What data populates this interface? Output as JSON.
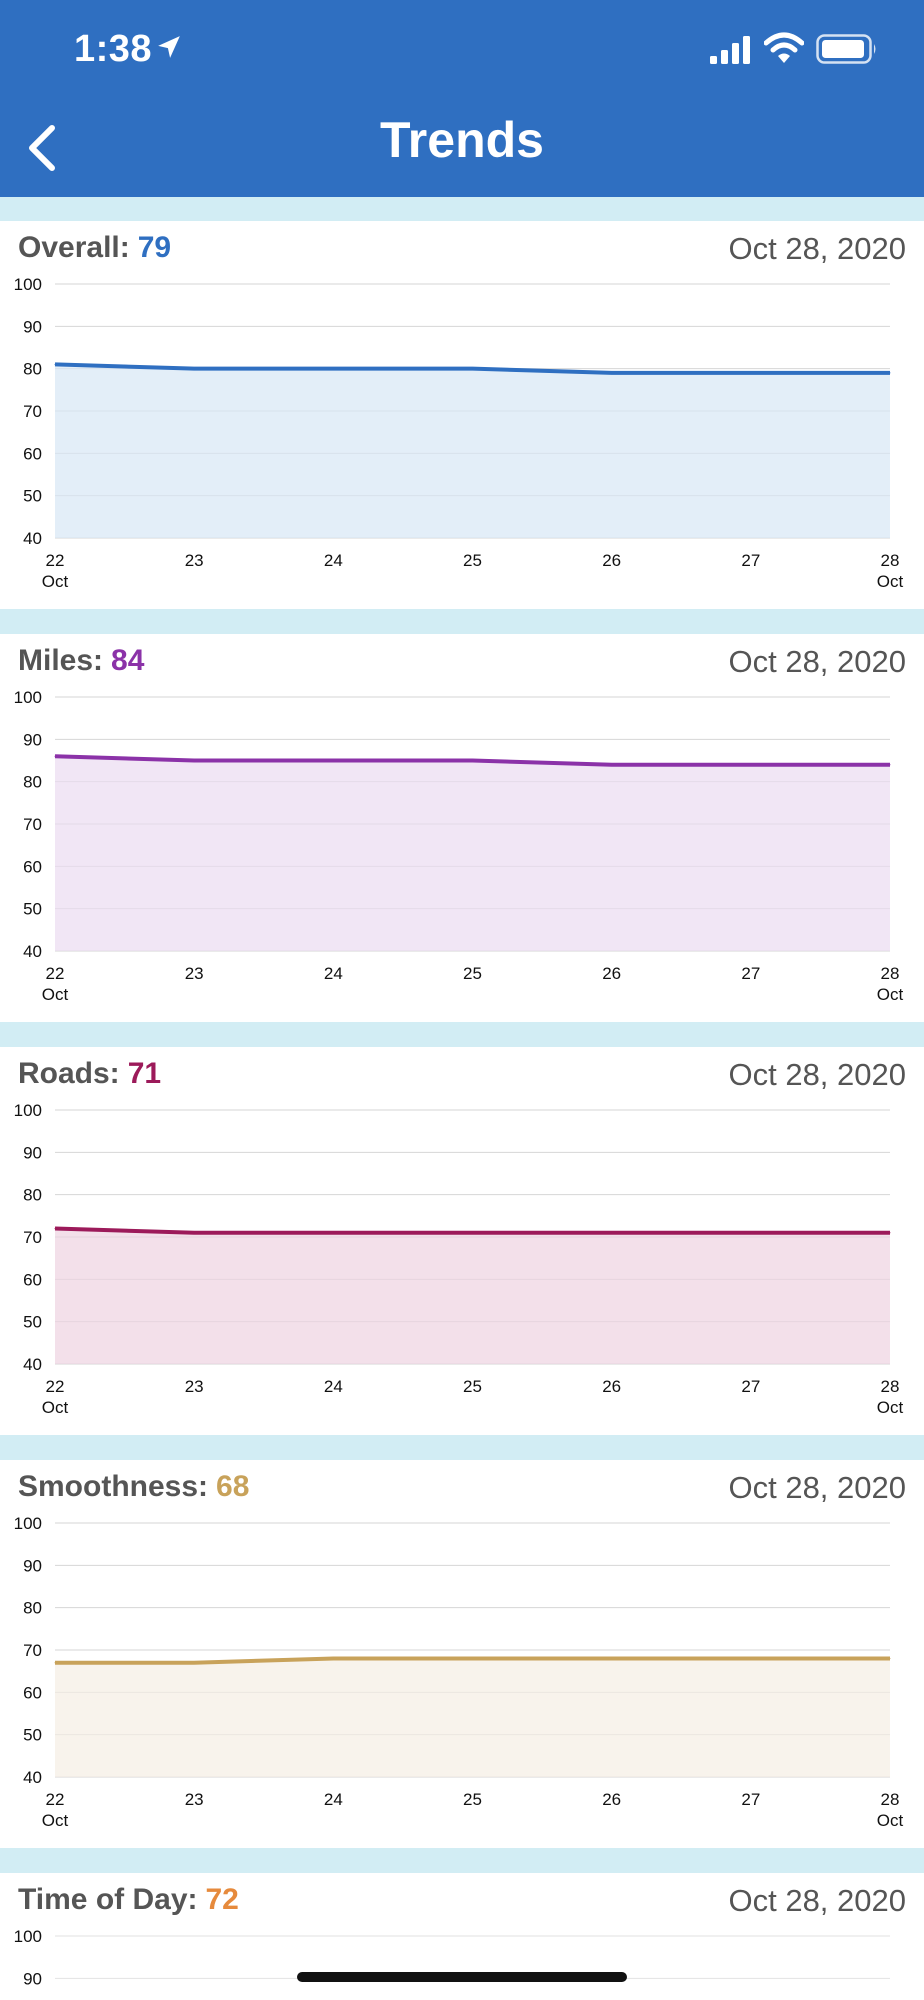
{
  "status_bar": {
    "time": "1:38"
  },
  "header": {
    "title": "Trends",
    "back_icon": "chevron-left-icon"
  },
  "cards": [
    {
      "label": "Overall:",
      "value": "79",
      "color": "#2f6fc1",
      "fill": "#e3eef8",
      "date": "Oct 28, 2020"
    },
    {
      "label": "Miles:",
      "value": "84",
      "color": "#8b32a8",
      "fill": "#f1e6f5",
      "date": "Oct 28, 2020"
    },
    {
      "label": "Roads:",
      "value": "71",
      "color": "#9c1a5a",
      "fill": "#f3e0ea",
      "date": "Oct 28, 2020"
    },
    {
      "label": "Smoothness:",
      "value": "68",
      "color": "#c8a25a",
      "fill": "#f8f3ec",
      "date": "Oct 28, 2020"
    },
    {
      "label": "Time of Day:",
      "value": "72",
      "color": "#e68a3c",
      "fill": "#fbeee3",
      "date": "Oct 28, 2020"
    }
  ],
  "chart_data": [
    {
      "type": "area",
      "x": [
        "22 Oct",
        "23",
        "24",
        "25",
        "26",
        "27",
        "28 Oct"
      ],
      "series": [
        {
          "values": [
            81,
            80,
            80,
            80,
            79,
            79,
            79
          ]
        }
      ],
      "ylim": [
        40,
        100
      ],
      "yticks": [
        100,
        90,
        80,
        70,
        60,
        50,
        40
      ]
    },
    {
      "type": "area",
      "x": [
        "22 Oct",
        "23",
        "24",
        "25",
        "26",
        "27",
        "28 Oct"
      ],
      "series": [
        {
          "values": [
            86,
            85,
            85,
            85,
            84,
            84,
            84
          ]
        }
      ],
      "ylim": [
        40,
        100
      ],
      "yticks": [
        100,
        90,
        80,
        70,
        60,
        50,
        40
      ]
    },
    {
      "type": "area",
      "x": [
        "22 Oct",
        "23",
        "24",
        "25",
        "26",
        "27",
        "28 Oct"
      ],
      "series": [
        {
          "values": [
            72,
            71,
            71,
            71,
            71,
            71,
            71
          ]
        }
      ],
      "ylim": [
        40,
        100
      ],
      "yticks": [
        100,
        90,
        80,
        70,
        60,
        50,
        40
      ]
    },
    {
      "type": "area",
      "x": [
        "22 Oct",
        "23",
        "24",
        "25",
        "26",
        "27",
        "28 Oct"
      ],
      "series": [
        {
          "values": [
            67,
            67,
            68,
            68,
            68,
            68,
            68
          ]
        }
      ],
      "ylim": [
        40,
        100
      ],
      "yticks": [
        100,
        90,
        80,
        70,
        60,
        50,
        40
      ]
    },
    {
      "type": "area",
      "x": [],
      "series": [
        {
          "values": []
        }
      ],
      "ylim": [
        40,
        100
      ],
      "yticks": [
        100,
        90
      ]
    }
  ]
}
